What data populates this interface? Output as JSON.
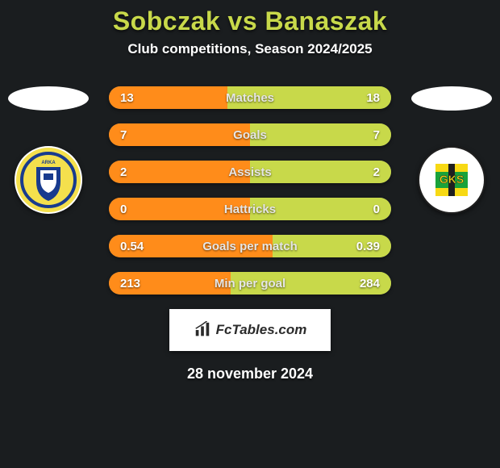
{
  "colors": {
    "background": "#1a1d1f",
    "title": "#c8d94a",
    "subtitle": "#ffffff",
    "bar_track": "#5f6b70",
    "bar_left": "#ff8c1a",
    "bar_right": "#c8d94a",
    "stat_value": "#ffffff",
    "stat_label": "#e6e6e6",
    "ellipse": "#ffffff",
    "brand_text": "#2b2b2b",
    "date": "#ffffff"
  },
  "typography": {
    "title_size": 32,
    "subtitle_size": 17,
    "stat_value_size": 15,
    "stat_label_size": 15,
    "brand_size": 17,
    "date_size": 18
  },
  "header": {
    "title": "Sobczak vs Banaszak",
    "subtitle": "Club competitions, Season 2024/2025"
  },
  "players": {
    "left_badge": {
      "bg": "#f4e04d",
      "ring": "#183b8e",
      "name": "arka-gdynia-crest"
    },
    "right_badge": {
      "bg": "#ffffff",
      "ring": "#1f1f1f",
      "name": "gks-crest"
    }
  },
  "stats": [
    {
      "label": "Matches",
      "left_val": "13",
      "right_val": "18",
      "left_pct": 42,
      "right_pct": 58
    },
    {
      "label": "Goals",
      "left_val": "7",
      "right_val": "7",
      "left_pct": 50,
      "right_pct": 50
    },
    {
      "label": "Assists",
      "left_val": "2",
      "right_val": "2",
      "left_pct": 50,
      "right_pct": 50
    },
    {
      "label": "Hattricks",
      "left_val": "0",
      "right_val": "0",
      "left_pct": 50,
      "right_pct": 50
    },
    {
      "label": "Goals per match",
      "left_val": "0.54",
      "right_val": "0.39",
      "left_pct": 58,
      "right_pct": 42
    },
    {
      "label": "Min per goal",
      "left_val": "213",
      "right_val": "284",
      "left_pct": 43,
      "right_pct": 57
    }
  ],
  "brand": {
    "text": "FcTables.com",
    "icon_name": "bar-chart-icon"
  },
  "date": "28 november 2024"
}
